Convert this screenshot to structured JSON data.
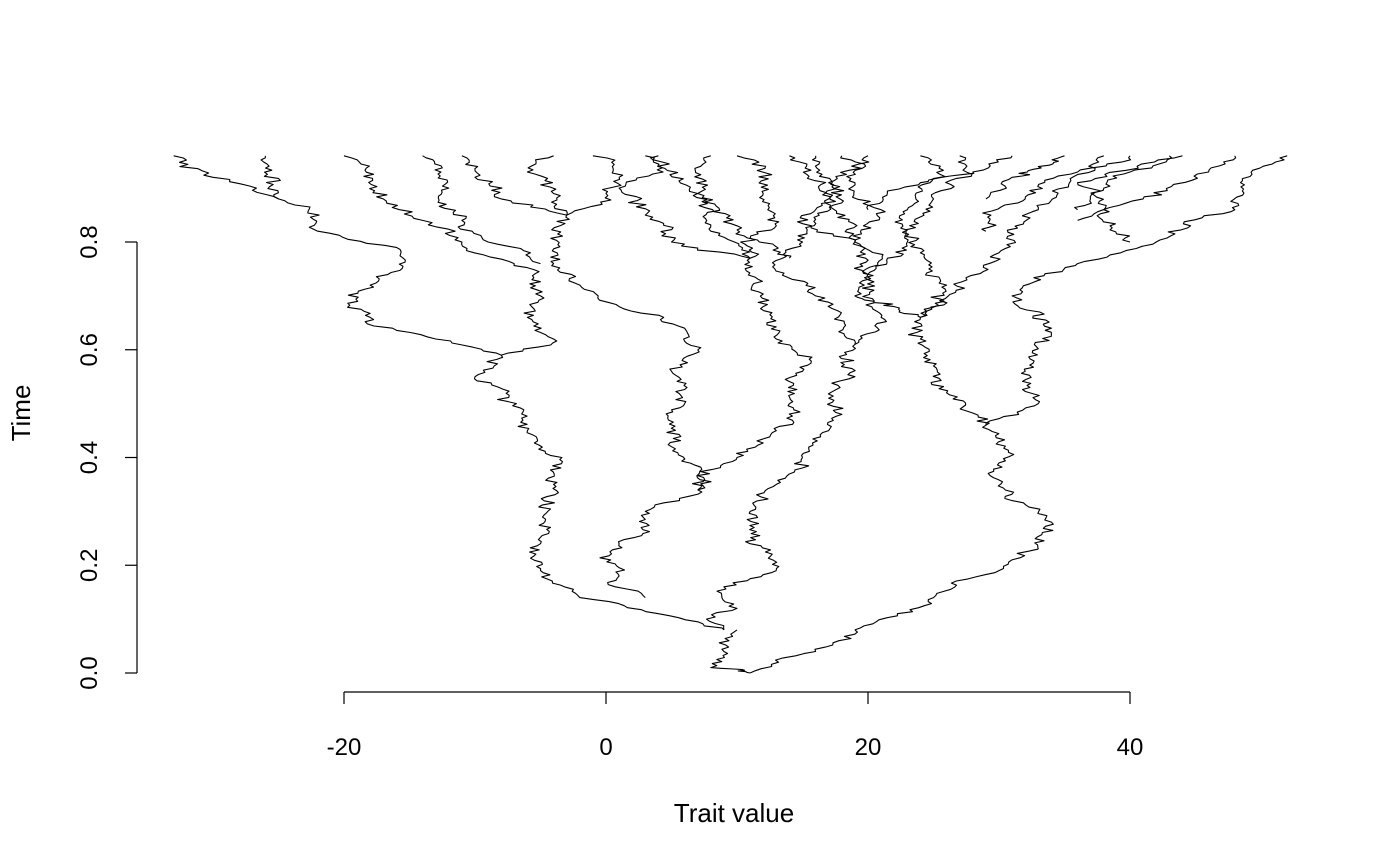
{
  "chart_data": {
    "type": "line",
    "title": "",
    "xlabel": "Trait value",
    "ylabel": "Time",
    "xlim": [
      -34,
      53
    ],
    "ylim": [
      0,
      0.96
    ],
    "x_ticks": [
      -20,
      0,
      20,
      40
    ],
    "x_tick_labels": [
      "-20",
      "0",
      "20",
      "40"
    ],
    "y_ticks": [
      0.0,
      0.2,
      0.4,
      0.6,
      0.8
    ],
    "y_tick_labels": [
      "0.0",
      "0.2",
      "0.4",
      "0.6",
      "0.8"
    ],
    "grid": false,
    "legend": "none",
    "line_color": "#000000",
    "series": [
      {
        "x": [
          11,
          8,
          9,
          10
        ],
        "y": [
          0.0,
          0.01,
          0.04,
          0.08
        ]
      },
      {
        "x": [
          11,
          16,
          19
        ],
        "y": [
          0.0,
          0.04,
          0.08
        ]
      },
      {
        "x": [
          9,
          4,
          -2,
          -5,
          -5,
          -4,
          -6,
          -10,
          -8
        ],
        "y": [
          0.08,
          0.11,
          0.14,
          0.19,
          0.24,
          0.35,
          0.45,
          0.55,
          0.59
        ]
      },
      {
        "x": [
          9,
          10,
          9,
          13
        ],
        "y": [
          0.08,
          0.12,
          0.16,
          0.19
        ]
      },
      {
        "x": [
          19,
          25,
          30,
          33
        ],
        "y": [
          0.08,
          0.14,
          0.19,
          0.23
        ]
      },
      {
        "x": [
          3,
          1,
          1,
          3,
          7
        ],
        "y": [
          0.14,
          0.18,
          0.24,
          0.3,
          0.34
        ]
      },
      {
        "x": [
          13,
          11,
          11,
          13,
          15
        ],
        "y": [
          0.19,
          0.24,
          0.3,
          0.35,
          0.4
        ]
      },
      {
        "x": [
          15,
          17,
          17,
          19,
          19
        ],
        "y": [
          0.4,
          0.45,
          0.51,
          0.55,
          0.61
        ]
      },
      {
        "x": [
          33,
          34,
          31,
          30,
          29
        ],
        "y": [
          0.23,
          0.28,
          0.32,
          0.39,
          0.46
        ]
      },
      {
        "x": [
          29,
          26,
          25,
          24,
          24
        ],
        "y": [
          0.46,
          0.52,
          0.57,
          0.62,
          0.66
        ]
      },
      {
        "x": [
          29,
          33,
          32,
          34,
          31,
          36,
          42,
          48,
          52
        ],
        "y": [
          0.46,
          0.5,
          0.56,
          0.64,
          0.7,
          0.76,
          0.8,
          0.86,
          0.96
        ]
      },
      {
        "x": [
          7,
          5,
          6,
          5,
          7
        ],
        "y": [
          0.34,
          0.42,
          0.5,
          0.56,
          0.6
        ]
      },
      {
        "x": [
          7,
          6,
          1,
          -2,
          -4,
          -3
        ],
        "y": [
          0.6,
          0.64,
          0.68,
          0.72,
          0.76,
          0.85
        ]
      },
      {
        "x": [
          7,
          10,
          13,
          14
        ],
        "y": [
          0.34,
          0.4,
          0.45,
          0.5
        ]
      },
      {
        "x": [
          14,
          15,
          13,
          12,
          11
        ],
        "y": [
          0.5,
          0.56,
          0.62,
          0.68,
          0.77
        ]
      },
      {
        "x": [
          -8,
          -4,
          -6,
          -5,
          -7
        ],
        "y": [
          0.59,
          0.62,
          0.66,
          0.7,
          0.76
        ]
      },
      {
        "x": [
          -7,
          -11,
          -14,
          -17,
          -20
        ],
        "y": [
          0.76,
          0.8,
          0.84,
          0.88,
          0.96
        ]
      },
      {
        "x": [
          -8,
          -13,
          -18,
          -18,
          -16,
          -22,
          -25,
          -26
        ],
        "y": [
          0.59,
          0.62,
          0.66,
          0.72,
          0.79,
          0.82,
          0.88,
          0.96
        ]
      },
      {
        "x": [
          -25,
          -30,
          -33
        ],
        "y": [
          0.88,
          0.92,
          0.96
        ]
      },
      {
        "x": [
          -5,
          -9,
          -11,
          -12,
          -14
        ],
        "y": [
          0.76,
          0.8,
          0.84,
          0.9,
          0.96
        ]
      },
      {
        "x": [
          -3,
          -8,
          -10,
          -11
        ],
        "y": [
          0.85,
          0.88,
          0.92,
          0.96
        ]
      },
      {
        "x": [
          -3,
          0,
          1,
          -1
        ],
        "y": [
          0.85,
          0.89,
          0.92,
          0.96
        ]
      },
      {
        "x": [
          -3,
          -4,
          -6,
          -4
        ],
        "y": [
          0.85,
          0.89,
          0.93,
          0.96
        ]
      },
      {
        "x": [
          11,
          13,
          12,
          10
        ],
        "y": [
          0.77,
          0.83,
          0.89,
          0.96
        ]
      },
      {
        "x": [
          11,
          8,
          7,
          8
        ],
        "y": [
          0.77,
          0.82,
          0.89,
          0.96
        ]
      },
      {
        "x": [
          11,
          5,
          3,
          1,
          3
        ],
        "y": [
          0.77,
          0.8,
          0.85,
          0.9,
          0.96
        ]
      },
      {
        "x": [
          19,
          16,
          15,
          16
        ],
        "y": [
          0.61,
          0.7,
          0.8,
          0.96
        ]
      },
      {
        "x": [
          19,
          21,
          20,
          19
        ],
        "y": [
          0.61,
          0.66,
          0.73,
          0.8
        ]
      },
      {
        "x": [
          19,
          16,
          17,
          20
        ],
        "y": [
          0.8,
          0.86,
          0.91,
          0.96
        ]
      },
      {
        "x": [
          19,
          21,
          19,
          18
        ],
        "y": [
          0.8,
          0.86,
          0.91,
          0.96
        ]
      },
      {
        "x": [
          24,
          22,
          19,
          20
        ],
        "y": [
          0.66,
          0.68,
          0.7,
          0.74
        ]
      },
      {
        "x": [
          20,
          19,
          17,
          14
        ],
        "y": [
          0.74,
          0.8,
          0.88,
          0.96
        ]
      },
      {
        "x": [
          20,
          23,
          25,
          27
        ],
        "y": [
          0.74,
          0.8,
          0.88,
          0.96
        ]
      },
      {
        "x": [
          24,
          26,
          24,
          23,
          24
        ],
        "y": [
          0.66,
          0.72,
          0.78,
          0.86,
          0.96
        ]
      },
      {
        "x": [
          24,
          30,
          33,
          38
        ],
        "y": [
          0.66,
          0.78,
          0.86,
          0.96
        ]
      },
      {
        "x": [
          29,
          32,
          36,
          40
        ],
        "y": [
          0.82,
          0.88,
          0.93,
          0.96
        ]
      },
      {
        "x": [
          36,
          41,
          46,
          48
        ],
        "y": [
          0.84,
          0.88,
          0.93,
          0.96
        ]
      },
      {
        "x": [
          29,
          31,
          33,
          35
        ],
        "y": [
          0.88,
          0.92,
          0.94,
          0.96
        ]
      },
      {
        "x": [
          40,
          38,
          36,
          44
        ],
        "y": [
          0.8,
          0.86,
          0.91,
          0.96
        ]
      },
      {
        "x": [
          36,
          38,
          40,
          43
        ],
        "y": [
          0.86,
          0.9,
          0.93,
          0.96
        ]
      },
      {
        "x": [
          20,
          24,
          28,
          31
        ],
        "y": [
          0.86,
          0.91,
          0.93,
          0.96
        ]
      },
      {
        "x": [
          14,
          10,
          7,
          4
        ],
        "y": [
          0.77,
          0.83,
          0.89,
          0.96
        ]
      }
    ]
  }
}
